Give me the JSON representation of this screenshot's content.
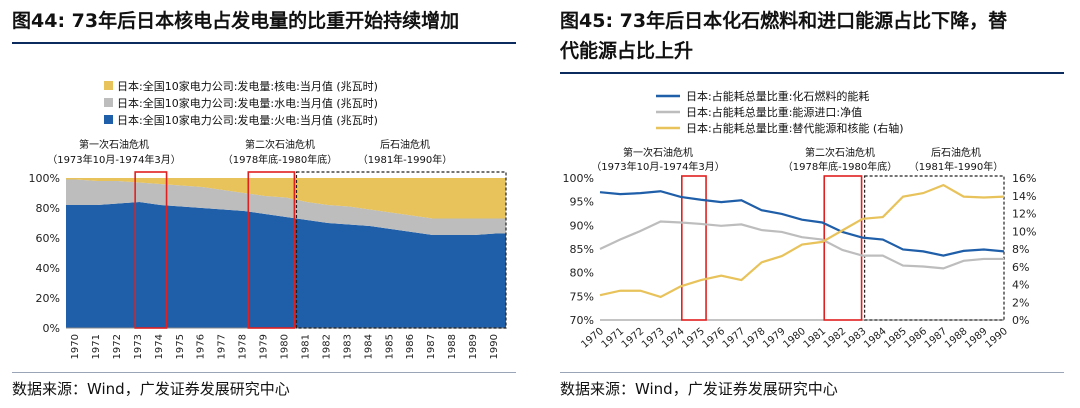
{
  "figure44": {
    "title": "图44: 73年后日本核电占发电量的比重开始持续增加",
    "source": "数据来源：Wind，广发证券发展研究中心"
  },
  "figure45": {
    "title_line1": "图45: 73年后日本化石燃料和进口能源占比下降，替",
    "title_line2": "代能源占比上升",
    "source": "数据来源：Wind，广发证券发展研究中心"
  },
  "chart_data": [
    {
      "type": "area",
      "stacked": true,
      "percent": true,
      "x_ticks": [
        "1970",
        "1971",
        "1972",
        "1973",
        "1974",
        "1975",
        "1976",
        "1977",
        "1978",
        "1979",
        "1980",
        "1981",
        "1982",
        "1983",
        "1984",
        "1985",
        "1986",
        "1987",
        "1988",
        "1989",
        "1990"
      ],
      "ylim": [
        0,
        100
      ],
      "y_ticks": [
        "0%",
        "20%",
        "40%",
        "60%",
        "80%",
        "100%"
      ],
      "series": [
        {
          "name": "日本:全国10家电力公司:发电量:核电:当月值 (兆瓦时)",
          "color": "#e8c25a",
          "values": [
            1,
            2,
            2,
            3,
            4,
            5,
            6,
            8,
            10,
            12,
            13,
            16,
            18,
            19,
            21,
            23,
            25,
            27,
            27,
            27,
            27
          ]
        },
        {
          "name": "日本:全国10家电力公司:发电量:水电:当月值 (兆瓦时)",
          "color": "#bdbdbd",
          "values": [
            17,
            16,
            15,
            13,
            14,
            14,
            14,
            13,
            12,
            12,
            13,
            12,
            12,
            12,
            11,
            11,
            11,
            11,
            11,
            11,
            10
          ]
        },
        {
          "name": "日本:全国10家电力公司:发电量:火电:当月值 (兆瓦时)",
          "color": "#1f5ea8",
          "values": [
            82,
            82,
            83,
            84,
            82,
            81,
            80,
            79,
            78,
            76,
            74,
            72,
            70,
            69,
            68,
            66,
            64,
            62,
            62,
            62,
            63
          ]
        }
      ],
      "annotations": [
        {
          "text1": "第一次石油危机",
          "text2": "（1973年10月-1974年3月）",
          "start": 1973.8,
          "end": 1974.25
        },
        {
          "text1": "第二次石油危机",
          "text2": "（1978年底-1980年底）",
          "start": 1978.95,
          "end": 1980.95
        },
        {
          "text1": "后石油危机",
          "text2": "（1981年-1990年）",
          "start": 1981,
          "end": 1990.99
        }
      ]
    },
    {
      "type": "line",
      "x_ticks": [
        "1970",
        "1971",
        "1972",
        "1973",
        "1974",
        "1975",
        "1976",
        "1977",
        "1978",
        "1979",
        "1980",
        "1981",
        "1982",
        "1983",
        "1984",
        "1985",
        "1986",
        "1987",
        "1988",
        "1989",
        "1990"
      ],
      "ylim_left": [
        70,
        100
      ],
      "y_ticks_left": [
        "70%",
        "75%",
        "80%",
        "85%",
        "90%",
        "95%",
        "100%"
      ],
      "ylim_right": [
        0,
        16
      ],
      "y_ticks_right": [
        "0%",
        "2%",
        "4%",
        "6%",
        "8%",
        "10%",
        "12%",
        "14%",
        "16%"
      ],
      "series": [
        {
          "name": "日本:占能耗总量比重:化石燃料的能耗",
          "axis": "left",
          "color": "#1f5ea8",
          "values": [
            97,
            96.6,
            96.8,
            97.2,
            96,
            95.4,
            94.9,
            95.3,
            93.2,
            92.4,
            91.2,
            90.6,
            88.6,
            87.4,
            87.0,
            84.9,
            84.5,
            83.6,
            84.6,
            84.9,
            84.5
          ]
        },
        {
          "name": "日本:占能耗总量比重:能源进口:净值",
          "axis": "left",
          "color": "#bdbdbd",
          "values": [
            85,
            87,
            88.8,
            90.8,
            90.6,
            90.3,
            89.9,
            90.2,
            89,
            88.6,
            87.5,
            87,
            84.8,
            83.6,
            83.6,
            81.5,
            81.3,
            80.9,
            82.5,
            82.9,
            82.9
          ]
        },
        {
          "name": "日本:占能耗总量比重:替代能源和核能 (右轴)",
          "axis": "right",
          "color": "#e8c25a",
          "values": [
            2.8,
            3.3,
            3.3,
            2.6,
            3.8,
            4.5,
            5.0,
            4.5,
            6.5,
            7.2,
            8.5,
            8.8,
            10.1,
            11.4,
            11.6,
            13.9,
            14.3,
            15.2,
            13.9,
            13.8,
            13.9
          ]
        }
      ],
      "annotations": [
        {
          "text1": "第一次石油危机",
          "text2": "（1973年10月-1974年3月）",
          "start": 1974,
          "end": 1975.3
        },
        {
          "text1": "第二次石油危机",
          "text2": "（1978年底-1980年底）",
          "start": 1980.95,
          "end": 1982.8
        },
        {
          "text1": "后石油危机",
          "text2": "（1981年-1990年）",
          "start": 1983,
          "end": 1990
        }
      ]
    }
  ]
}
